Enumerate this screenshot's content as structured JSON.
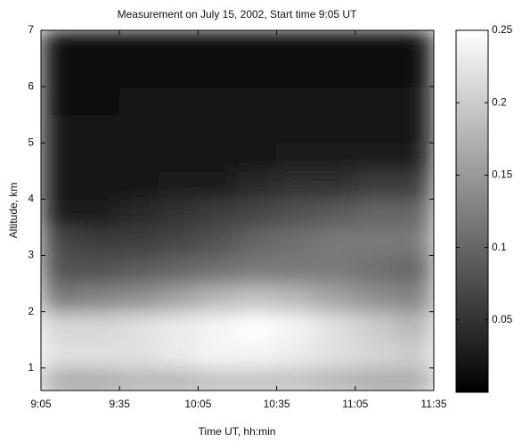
{
  "chart_data": {
    "type": "heatmap",
    "title": "Measurement on July 15, 2002, Start time 9:05 UT",
    "xlabel": "Time UT, hh:min",
    "ylabel": "Altitude, km",
    "x": [
      7.5,
      22.5,
      37.5,
      52.5,
      67.5,
      82.5,
      97.5,
      112.5,
      127.5,
      142.5
    ],
    "y": [
      0.75,
      1.25,
      1.75,
      2.25,
      2.75,
      3.25,
      3.75,
      4.25,
      4.75,
      5.25,
      5.75,
      6.25,
      6.75
    ],
    "z": [
      [
        0.17,
        0.17,
        0.18,
        0.18,
        0.19,
        0.19,
        0.19,
        0.18,
        0.17,
        0.17
      ],
      [
        0.22,
        0.22,
        0.22,
        0.23,
        0.24,
        0.24,
        0.23,
        0.22,
        0.21,
        0.2
      ],
      [
        0.21,
        0.21,
        0.22,
        0.23,
        0.24,
        0.25,
        0.24,
        0.22,
        0.2,
        0.18
      ],
      [
        0.12,
        0.13,
        0.14,
        0.16,
        0.18,
        0.19,
        0.18,
        0.16,
        0.14,
        0.13
      ],
      [
        0.08,
        0.08,
        0.09,
        0.1,
        0.11,
        0.12,
        0.12,
        0.12,
        0.11,
        0.1
      ],
      [
        0.07,
        0.06,
        0.06,
        0.07,
        0.08,
        0.1,
        0.11,
        0.12,
        0.12,
        0.12
      ],
      [
        0.03,
        0.03,
        0.04,
        0.05,
        0.06,
        0.07,
        0.08,
        0.09,
        0.1,
        0.1
      ],
      [
        0.02,
        0.02,
        0.02,
        0.03,
        0.03,
        0.04,
        0.05,
        0.05,
        0.06,
        0.06
      ],
      [
        0.02,
        0.02,
        0.02,
        0.02,
        0.02,
        0.02,
        0.03,
        0.03,
        0.03,
        0.03
      ],
      [
        0.02,
        0.02,
        0.02,
        0.02,
        0.02,
        0.02,
        0.02,
        0.02,
        0.02,
        0.02
      ],
      [
        0.01,
        0.01,
        0.02,
        0.02,
        0.02,
        0.02,
        0.02,
        0.02,
        0.02,
        0.02
      ],
      [
        0.01,
        0.01,
        0.01,
        0.01,
        0.01,
        0.01,
        0.01,
        0.01,
        0.01,
        0.01
      ],
      [
        0.01,
        0.01,
        0.01,
        0.01,
        0.01,
        0.01,
        0.01,
        0.01,
        0.01,
        0.01
      ]
    ],
    "colormap": "gray",
    "clim": [
      0,
      0.25
    ],
    "cticks": [
      0.05,
      0.1,
      0.15,
      0.2,
      0.25
    ],
    "xlim": [
      0,
      150
    ],
    "xticks": [
      {
        "value": 0,
        "label": "9:05"
      },
      {
        "value": 30,
        "label": "9:35"
      },
      {
        "value": 60,
        "label": "10:05"
      },
      {
        "value": 90,
        "label": "10:35"
      },
      {
        "value": 120,
        "label": "11:05"
      },
      {
        "value": 150,
        "label": "11:35"
      }
    ],
    "ylim": [
      0.6,
      7
    ],
    "yticks": [
      1,
      2,
      3,
      4,
      5,
      6,
      7
    ]
  }
}
